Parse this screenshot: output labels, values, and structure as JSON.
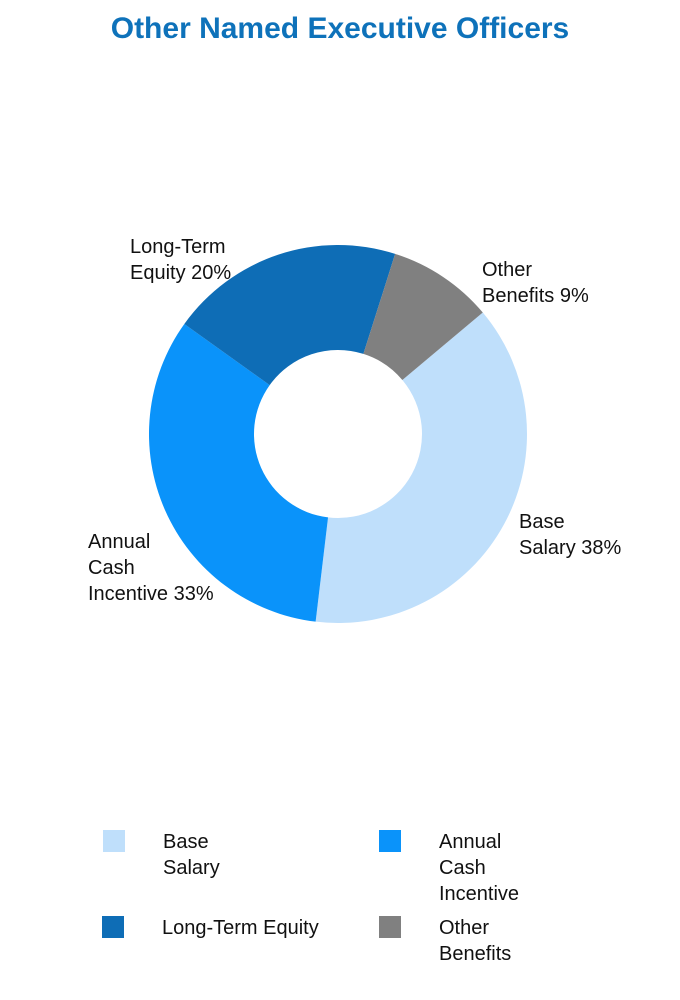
{
  "page": {
    "background": "#FFFFFF"
  },
  "chart_data": {
    "type": "pie",
    "subtype": "donut",
    "title": "Other Named Executive Officers",
    "title_color": "#0E72BA",
    "text_color": "#111111",
    "start_angle_deg": 50,
    "clockwise": true,
    "legend_position": "bottom",
    "segments": [
      {
        "label": "Base Salary",
        "value": 38,
        "unit": "%",
        "color": "#BFDFFB",
        "callout_lines": [
          "Base",
          "Salary 38%"
        ]
      },
      {
        "label": "Annual Cash Incentive",
        "value": 33,
        "unit": "%",
        "color": "#0A93FA",
        "callout_lines": [
          "Annual",
          "Cash",
          "Incentive 33%"
        ]
      },
      {
        "label": "Long-Term Equity",
        "value": 20,
        "unit": "%",
        "color": "#0E6DB6",
        "callout_lines": [
          "Long-Term",
          "Equity 20%"
        ]
      },
      {
        "label": "Other Benefits",
        "value": 9,
        "unit": "%",
        "color": "#808080",
        "callout_lines": [
          "Other",
          "Benefits 9%"
        ]
      }
    ],
    "legend": {
      "items": [
        {
          "lines": [
            "Base",
            "Salary"
          ]
        },
        {
          "lines": [
            "Annual",
            "Cash",
            "Incentive"
          ]
        },
        {
          "lines": [
            "Long-Term Equity"
          ]
        },
        {
          "lines": [
            "Other",
            "Benefits"
          ]
        }
      ]
    }
  }
}
